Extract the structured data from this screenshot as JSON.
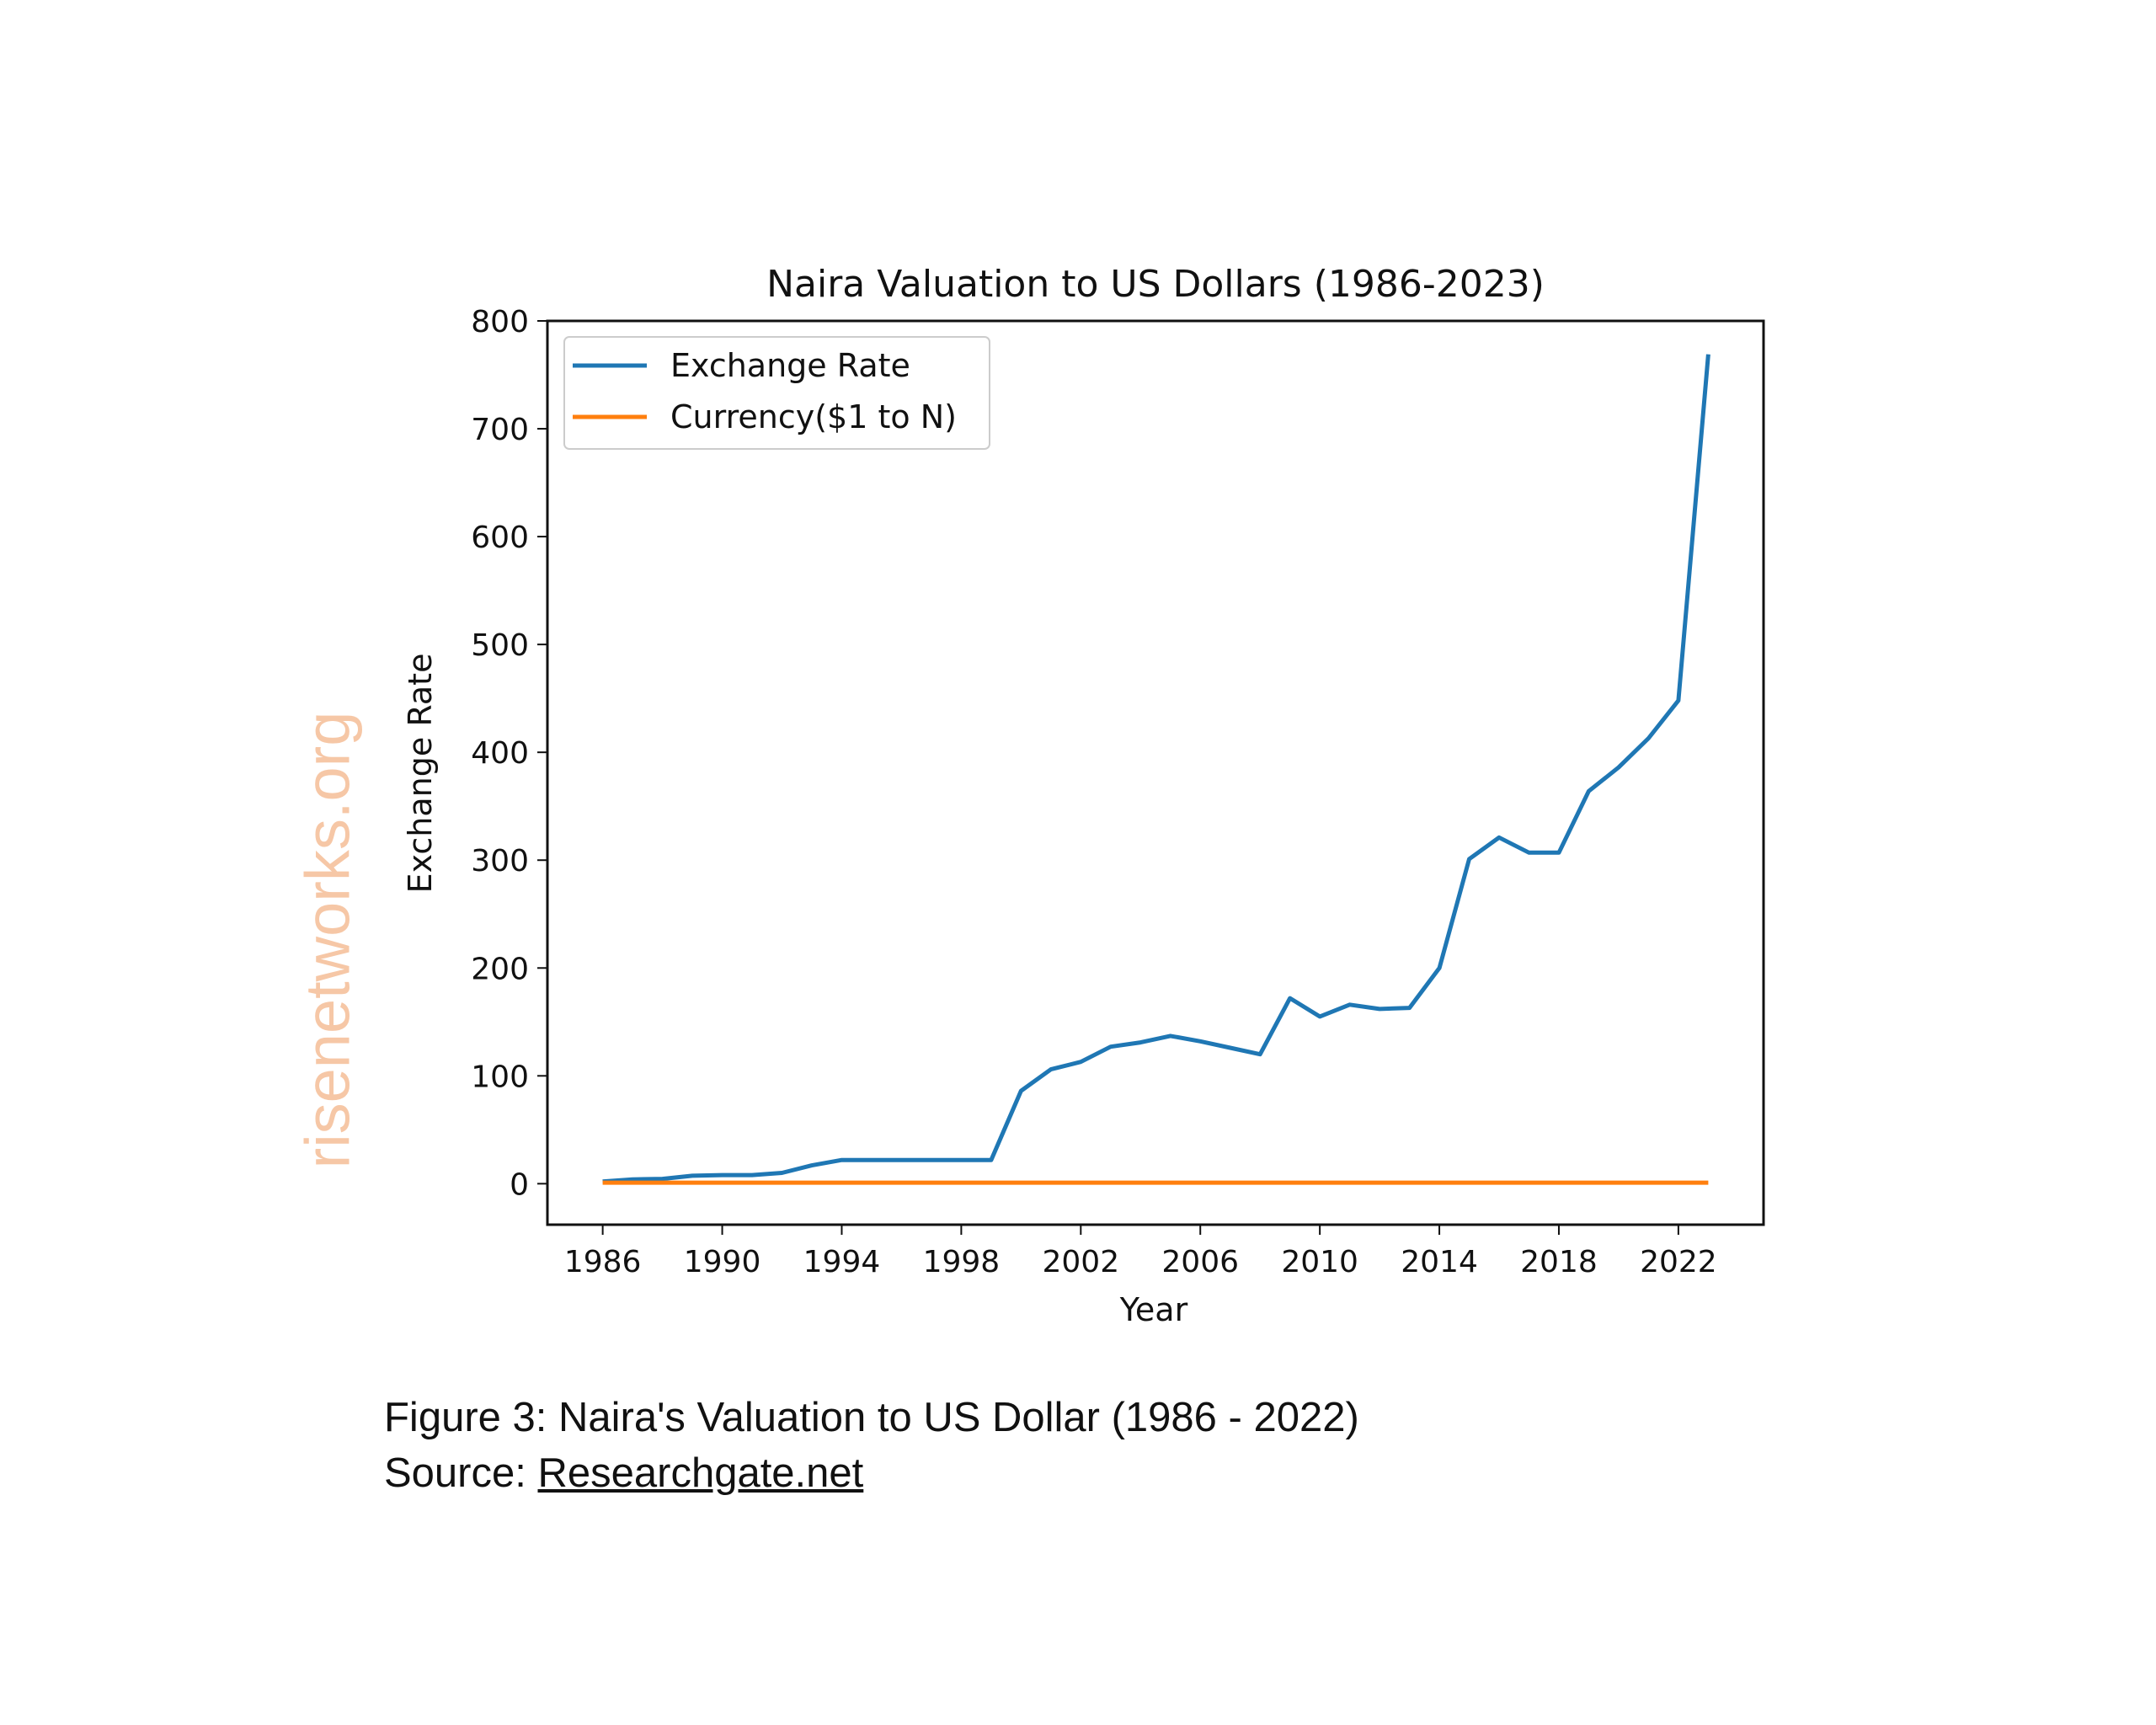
{
  "chart_data": {
    "type": "line",
    "title": "Naira Valuation to US Dollars (1986-2023)",
    "xlabel": "Year",
    "ylabel": "Exchange Rate",
    "xlim": [
      1984.15,
      2024.85
    ],
    "ylim": [
      -38,
      800
    ],
    "xticks": [
      1986,
      1990,
      1994,
      1998,
      2002,
      2006,
      2010,
      2014,
      2018,
      2022
    ],
    "yticks": [
      0,
      100,
      200,
      300,
      400,
      500,
      600,
      700,
      800
    ],
    "grid": false,
    "legend_position": "top-left",
    "x": [
      1986,
      1987,
      1988,
      1989,
      1990,
      1991,
      1992,
      1993,
      1994,
      1995,
      1996,
      1997,
      1998,
      1999,
      2000,
      2001,
      2002,
      2003,
      2004,
      2005,
      2006,
      2007,
      2008,
      2009,
      2010,
      2011,
      2012,
      2013,
      2014,
      2015,
      2016,
      2017,
      2018,
      2019,
      2020,
      2021,
      2022,
      2023
    ],
    "series": [
      {
        "name": "Exchange Rate",
        "color": "#1f77b4",
        "values": [
          2,
          4,
          4.5,
          7.4,
          8,
          8,
          10,
          17,
          22,
          22,
          22,
          22,
          22,
          22,
          86,
          106,
          113,
          127,
          131,
          137,
          132,
          126,
          120,
          172,
          155,
          166,
          162,
          163,
          200,
          301,
          321,
          307,
          307,
          364,
          386,
          413,
          448,
          769
        ]
      },
      {
        "name": "Currency($1 to N)",
        "color": "#ff7f0e",
        "values": [
          1,
          1,
          1,
          1,
          1,
          1,
          1,
          1,
          1,
          1,
          1,
          1,
          1,
          1,
          1,
          1,
          1,
          1,
          1,
          1,
          1,
          1,
          1,
          1,
          1,
          1,
          1,
          1,
          1,
          1,
          1,
          1,
          1,
          1,
          1,
          1,
          1,
          1
        ]
      }
    ]
  },
  "watermark": "risenetworks.org",
  "caption": {
    "line1": "Figure 3: Naira's Valuation to US Dollar (1986 - 2022)",
    "source_prefix": "Source: ",
    "source_link": "Researchgate.net"
  }
}
